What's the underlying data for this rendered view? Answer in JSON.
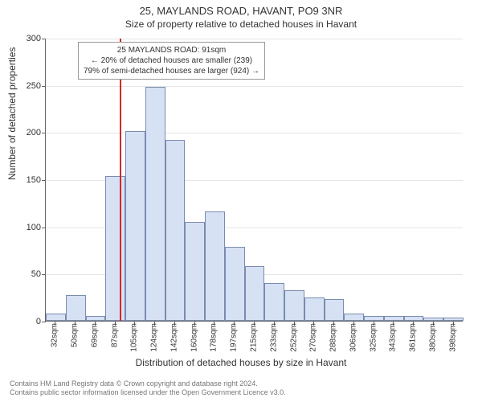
{
  "title": "25, MAYLANDS ROAD, HAVANT, PO9 3NR",
  "subtitle": "Size of property relative to detached houses in Havant",
  "xlabel": "Distribution of detached houses by size in Havant",
  "ylabel": "Number of detached properties",
  "footer1": "Contains HM Land Registry data © Crown copyright and database right 2024.",
  "footer2": "Contains public sector information licensed under the Open Government Licence v3.0.",
  "chart": {
    "type": "histogram",
    "background_color": "#ffffff",
    "grid_color": "#e6e6e6",
    "axis_color": "#666666",
    "bar_fill": "#d6e1f4",
    "bar_border": "#7a8bb0",
    "marker_color": "#d62728",
    "marker_x_value": 91,
    "title_fontsize": 13,
    "subtitle_fontsize": 12,
    "axis_label_fontsize": 12,
    "tick_fontsize": 11,
    "xtick_fontsize": 10,
    "ylim": [
      0,
      300
    ],
    "ytick_step": 50,
    "x_start": 23,
    "x_bin_width": 18.3,
    "x_tick_labels": [
      "32sqm",
      "50sqm",
      "69sqm",
      "87sqm",
      "105sqm",
      "124sqm",
      "142sqm",
      "160sqm",
      "178sqm",
      "197sqm",
      "215sqm",
      "233sqm",
      "252sqm",
      "270sqm",
      "288sqm",
      "306sqm",
      "325sqm",
      "343sqm",
      "361sqm",
      "380sqm",
      "398sqm"
    ],
    "bar_values": [
      8,
      27,
      5,
      153,
      201,
      248,
      192,
      105,
      116,
      78,
      58,
      40,
      32,
      25,
      23,
      8,
      5,
      5,
      5,
      3,
      3
    ],
    "infobox": {
      "line1": "25 MAYLANDS ROAD: 91sqm",
      "line2": "← 20% of detached houses are smaller (239)",
      "line3": "79% of semi-detached houses are larger (924) →",
      "border_color": "#999999",
      "background": "#ffffff",
      "fontsize": 10
    }
  }
}
